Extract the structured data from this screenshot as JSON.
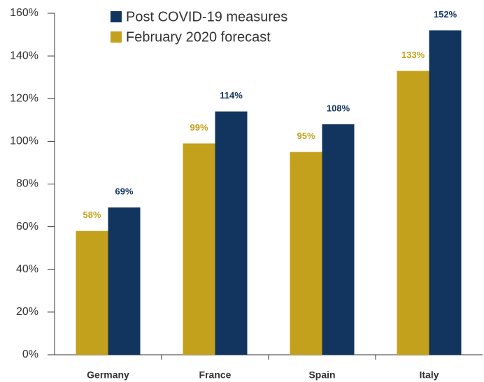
{
  "chart_data": {
    "type": "bar",
    "categories": [
      "Germany",
      "France",
      "Spain",
      "Italy"
    ],
    "series": [
      {
        "name": "February 2020 forecast",
        "color": "#c4a11d",
        "values": [
          58,
          99,
          95,
          133
        ],
        "value_labels": [
          "58%",
          "99%",
          "95%",
          "133%"
        ]
      },
      {
        "name": "Post COVID-19 measures",
        "color": "#12355f",
        "values": [
          69,
          114,
          108,
          152
        ],
        "value_labels": [
          "69%",
          "114%",
          "108%",
          "152%"
        ]
      }
    ],
    "ylim": [
      0,
      160
    ],
    "yticks": [
      {
        "value": 0,
        "label": "0%"
      },
      {
        "value": 20,
        "label": "20%"
      },
      {
        "value": 40,
        "label": "40%"
      },
      {
        "value": 60,
        "label": "60%"
      },
      {
        "value": 80,
        "label": "80%"
      },
      {
        "value": 100,
        "label": "100%"
      },
      {
        "value": 120,
        "label": "120%"
      },
      {
        "value": 140,
        "label": "140%"
      },
      {
        "value": 160,
        "label": "160%"
      }
    ],
    "grid": false
  }
}
